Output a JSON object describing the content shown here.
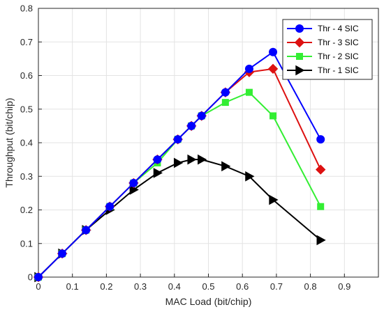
{
  "chart_data": {
    "type": "line",
    "xlabel": "MAC Load (bit/chip)",
    "ylabel": "Throughput (bit/chip)",
    "xlim": [
      0,
      1
    ],
    "ylim": [
      0,
      0.8
    ],
    "xticks": [
      "0",
      "0.1",
      "0.2",
      "0.3",
      "0.4",
      "0.5",
      "0.6",
      "0.7",
      "0.8",
      "0.9"
    ],
    "yticks": [
      "0",
      "0.1",
      "0.2",
      "0.3",
      "0.4",
      "0.5",
      "0.6",
      "0.7",
      "0.8"
    ],
    "grid": true,
    "legend_position": "top-right",
    "series": [
      {
        "name": "Thr - 4 SIC",
        "color": "#0000ff",
        "marker": "circle",
        "x": [
          0,
          0.07,
          0.14,
          0.21,
          0.28,
          0.35,
          0.41,
          0.45,
          0.48,
          0.55,
          0.62,
          0.69,
          0.83
        ],
        "y": [
          0,
          0.07,
          0.14,
          0.21,
          0.28,
          0.35,
          0.41,
          0.45,
          0.48,
          0.55,
          0.62,
          0.67,
          0.41
        ]
      },
      {
        "name": "Thr - 3 SIC",
        "color": "#dd1111",
        "marker": "diamond",
        "x": [
          0,
          0.07,
          0.14,
          0.21,
          0.28,
          0.35,
          0.41,
          0.45,
          0.48,
          0.55,
          0.62,
          0.69,
          0.83
        ],
        "y": [
          0,
          0.07,
          0.14,
          0.21,
          0.28,
          0.35,
          0.41,
          0.45,
          0.48,
          0.55,
          0.61,
          0.62,
          0.32
        ]
      },
      {
        "name": "Thr - 2 SIC",
        "color": "#33ee33",
        "marker": "square",
        "x": [
          0,
          0.07,
          0.14,
          0.21,
          0.28,
          0.35,
          0.41,
          0.45,
          0.48,
          0.55,
          0.62,
          0.69,
          0.83
        ],
        "y": [
          0,
          0.07,
          0.14,
          0.21,
          0.28,
          0.34,
          0.41,
          0.45,
          0.48,
          0.52,
          0.55,
          0.48,
          0.21
        ]
      },
      {
        "name": "Thr - 1 SIC",
        "color": "#000000",
        "marker": "triangle-right",
        "x": [
          0,
          0.07,
          0.14,
          0.21,
          0.28,
          0.35,
          0.41,
          0.45,
          0.48,
          0.55,
          0.62,
          0.69,
          0.83
        ],
        "y": [
          0,
          0.07,
          0.14,
          0.2,
          0.26,
          0.31,
          0.34,
          0.35,
          0.35,
          0.33,
          0.3,
          0.23,
          0.11
        ]
      }
    ]
  }
}
